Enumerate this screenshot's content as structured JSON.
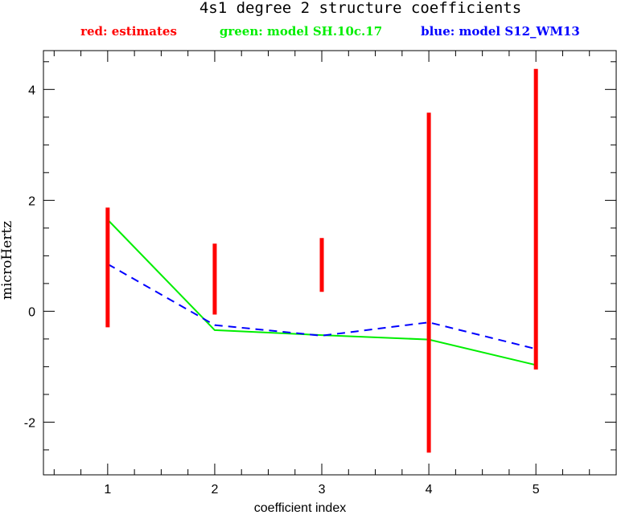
{
  "chart_data": {
    "type": "line",
    "title": "4s1 degree 2 structure coefficients",
    "xlabel": "coefficient index",
    "ylabel": "microHertz",
    "xlim": [
      0.4,
      5.75
    ],
    "ylim": [
      -2.95,
      4.7
    ],
    "x_ticks": [
      1,
      2,
      3,
      4,
      5
    ],
    "x_tick_labels": [
      "1",
      "2",
      "3",
      "4",
      "5"
    ],
    "y_ticks": [
      -2,
      0,
      2,
      4
    ],
    "y_tick_labels": [
      "-2",
      "0",
      "2",
      "4"
    ],
    "grid": false,
    "legend": [
      {
        "label": "red: estimates",
        "color": "#ff0000"
      },
      {
        "label": "green: model SH.10c.17",
        "color": "#00ee00"
      },
      {
        "label": "blue: model S12_WM13",
        "color": "#0000ff"
      }
    ],
    "estimates": [
      {
        "x": 1,
        "low": -0.29,
        "high": 1.87
      },
      {
        "x": 2,
        "low": -0.06,
        "high": 1.22
      },
      {
        "x": 3,
        "low": 0.35,
        "high": 1.32
      },
      {
        "x": 4,
        "low": -2.55,
        "high": 3.58
      },
      {
        "x": 5,
        "low": -1.05,
        "high": 4.37
      }
    ],
    "series": [
      {
        "name": "green: model SH.10c.17",
        "color": "#00ee00",
        "dash": false,
        "x": [
          1,
          2,
          3,
          4,
          5
        ],
        "y": [
          1.65,
          -0.34,
          -0.43,
          -0.51,
          -0.97
        ]
      },
      {
        "name": "blue: model S12_WM13",
        "color": "#0000ff",
        "dash": true,
        "x": [
          1,
          2,
          3,
          4,
          5
        ],
        "y": [
          0.85,
          -0.25,
          -0.44,
          -0.2,
          -0.68
        ]
      }
    ]
  }
}
